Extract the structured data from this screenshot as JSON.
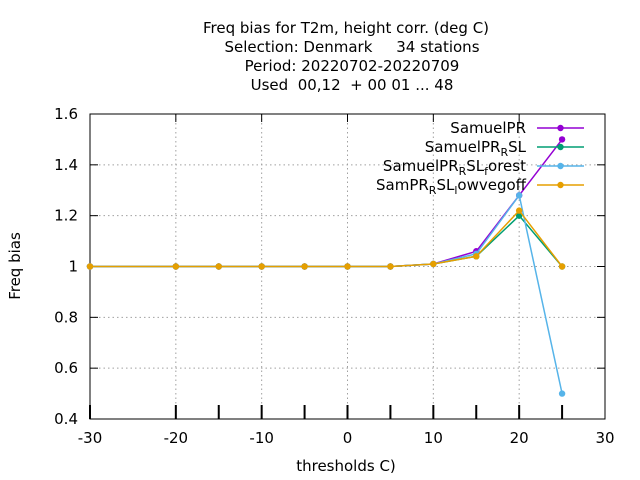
{
  "chart_data": {
    "type": "line",
    "title_lines": [
      "Freq bias  for T2m, height corr. (deg C)",
      "Selection: Denmark     34 stations",
      "Period: 20220702-20220709",
      "Used  00,12  + 00 01 ... 48"
    ],
    "xlabel": "thresholds C)",
    "ylabel": "Freq bias",
    "xlim": [
      -30,
      30
    ],
    "ylim": [
      0.4,
      1.6
    ],
    "xticks": [
      -30,
      -20,
      -10,
      0,
      10,
      20,
      30
    ],
    "xtick_labels": [
      "-30",
      "-20",
      "-10",
      "0",
      "10",
      "20",
      "30"
    ],
    "yticks": [
      0.4,
      0.6,
      0.8,
      1.0,
      1.2,
      1.4,
      1.6
    ],
    "ytick_labels": [
      "0.4",
      "0.6",
      "0.8",
      "1",
      "1.2",
      "1.4",
      "1.6"
    ],
    "x_minor_ticks": [
      -30,
      -20,
      -15,
      -10,
      -5,
      0,
      5,
      10,
      15,
      20,
      25
    ],
    "grid": true,
    "legend_position": "top-right",
    "series": [
      {
        "name": "SamuelPR",
        "legend": {
          "main": "SamuelPR",
          "parts": []
        },
        "color": "#9400d3",
        "x": [
          -30,
          -20,
          -15,
          -10,
          -5,
          0,
          5,
          10,
          15,
          20,
          25
        ],
        "y": [
          1.0,
          1.0,
          1.0,
          1.0,
          1.0,
          1.0,
          1.0,
          1.01,
          1.06,
          1.28,
          1.5
        ]
      },
      {
        "name": "SamuelPR_RSL",
        "legend": {
          "main": "SamuelPR",
          "parts": [
            {
              "t": "R",
              "sub": true
            },
            {
              "t": "SL",
              "sub": false
            }
          ]
        },
        "color": "#009e73",
        "x": [
          -30,
          -20,
          -15,
          -10,
          -5,
          0,
          5,
          10,
          15,
          20,
          25
        ],
        "y": [
          1.0,
          1.0,
          1.0,
          1.0,
          1.0,
          1.0,
          1.0,
          1.01,
          1.04,
          1.2,
          1.0
        ]
      },
      {
        "name": "SamuelPR_RSL_forest",
        "legend": {
          "main": "SamuelPR",
          "parts": [
            {
              "t": "R",
              "sub": true
            },
            {
              "t": "SL",
              "sub": false
            },
            {
              "t": "f",
              "sub": true
            },
            {
              "t": "orest",
              "sub": false
            }
          ]
        },
        "color": "#56b4e9",
        "x": [
          -30,
          -20,
          -15,
          -10,
          -5,
          0,
          5,
          10,
          15,
          20,
          25
        ],
        "y": [
          1.0,
          1.0,
          1.0,
          1.0,
          1.0,
          1.0,
          1.0,
          1.01,
          1.05,
          1.28,
          0.5
        ]
      },
      {
        "name": "SamPR_RSL_lowvegoff",
        "legend": {
          "main": "SamPR",
          "parts": [
            {
              "t": "R",
              "sub": true
            },
            {
              "t": "SL",
              "sub": false
            },
            {
              "t": "l",
              "sub": true
            },
            {
              "t": "owvegoff",
              "sub": false
            }
          ]
        },
        "color": "#e69f00",
        "x": [
          -30,
          -20,
          -15,
          -10,
          -5,
          0,
          5,
          10,
          15,
          20,
          25
        ],
        "y": [
          1.0,
          1.0,
          1.0,
          1.0,
          1.0,
          1.0,
          1.0,
          1.01,
          1.04,
          1.22,
          1.0
        ]
      }
    ]
  }
}
